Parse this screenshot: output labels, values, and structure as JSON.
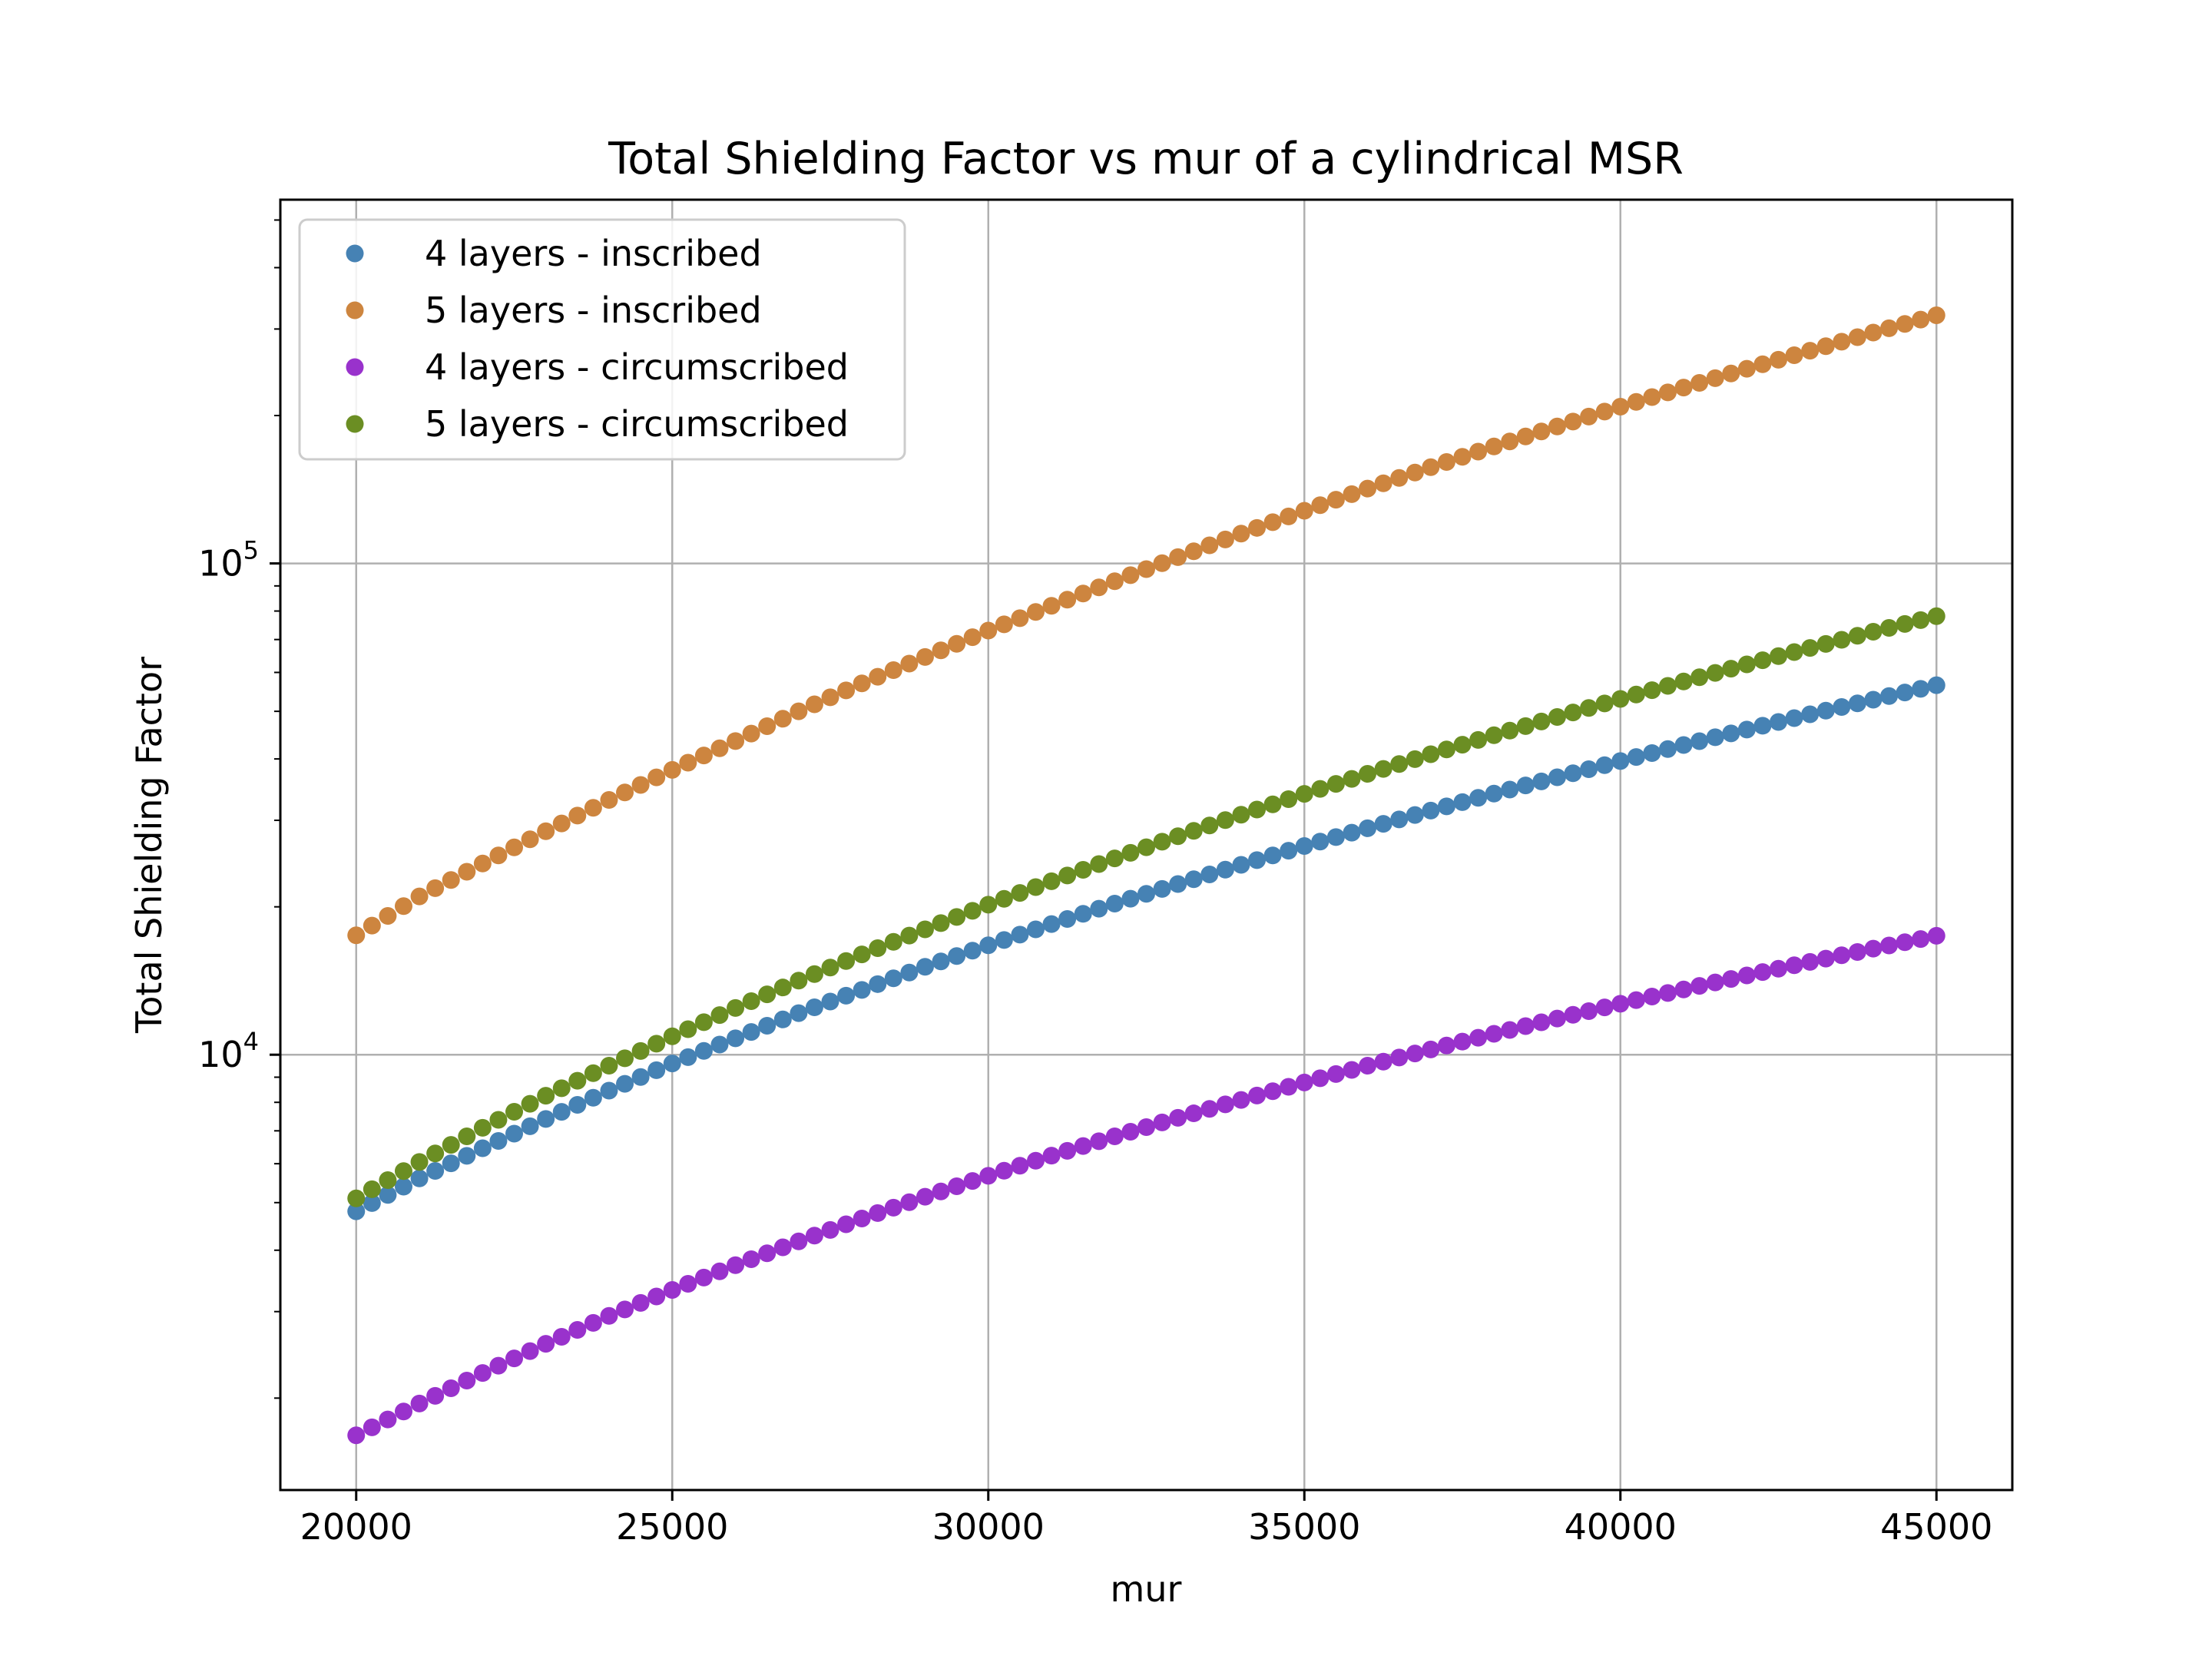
{
  "chart_data": {
    "type": "scatter",
    "title": "Total Shielding Factor vs mur of a cylindrical MSR",
    "xlabel": "mur",
    "ylabel": "Total Shielding Factor",
    "xlim": [
      18800,
      46200
    ],
    "ylim": [
      1300,
      550000
    ],
    "yscale": "log",
    "grid": true,
    "legend_position": "top-left",
    "x_ticks": [
      20000,
      25000,
      30000,
      35000,
      40000,
      45000
    ],
    "x_tick_labels": [
      "20000",
      "25000",
      "30000",
      "35000",
      "40000",
      "45000"
    ],
    "y_ticks": [
      10000,
      100000
    ],
    "y_tick_labels": [
      {
        "base": "10",
        "exp": "4"
      },
      {
        "base": "10",
        "exp": "5"
      }
    ],
    "series": [
      {
        "name": "4 layers - inscribed",
        "color": "#4682b4",
        "x": [
          20000,
          21000,
          22000,
          23000,
          24000,
          25000,
          26000,
          27000,
          28000,
          29000,
          30000,
          31000,
          32000,
          33000,
          34000,
          35000,
          36000,
          37000,
          38000,
          39000,
          40000,
          41000,
          42000,
          43000,
          44000,
          45000
        ],
        "y": [
          4800,
          5600,
          6450,
          7400,
          8450,
          9600,
          10800,
          12150,
          13550,
          15100,
          16700,
          18450,
          20300,
          22250,
          24350,
          26600,
          28900,
          31400,
          34000,
          36700,
          39600,
          42700,
          45900,
          49300,
          52800,
          56500
        ]
      },
      {
        "name": "5 layers - inscribed",
        "color": "#cd853f",
        "x": [
          20000,
          21000,
          22000,
          23000,
          24000,
          25000,
          26000,
          27000,
          28000,
          29000,
          30000,
          31000,
          32000,
          33000,
          34000,
          35000,
          36000,
          37000,
          38000,
          39000,
          40000,
          41000,
          42000,
          43000,
          44000,
          45000
        ],
        "y": [
          17500,
          21000,
          24500,
          28500,
          33000,
          38000,
          43500,
          50000,
          57000,
          64500,
          73000,
          82000,
          92000,
          103000,
          115000,
          128000,
          142000,
          157000,
          173000,
          190000,
          208500,
          228000,
          249000,
          271000,
          295000,
          320000
        ]
      },
      {
        "name": "4 layers - circumscribed",
        "color": "#9932cc",
        "x": [
          20000,
          21000,
          22000,
          23000,
          24000,
          25000,
          26000,
          27000,
          28000,
          29000,
          30000,
          31000,
          32000,
          33000,
          34000,
          35000,
          36000,
          37000,
          38000,
          39000,
          40000,
          41000,
          42000,
          43000,
          44000,
          45000
        ],
        "y": [
          1680,
          1950,
          2250,
          2580,
          2940,
          3320,
          3730,
          4170,
          4640,
          5140,
          5670,
          6230,
          6820,
          7440,
          8090,
          8780,
          9500,
          10250,
          11030,
          11850,
          12700,
          13580,
          14500,
          15450,
          16440,
          17460
        ]
      },
      {
        "name": "5 layers - circumscribed",
        "color": "#6b8e23",
        "x": [
          20000,
          21000,
          22000,
          23000,
          24000,
          25000,
          26000,
          27000,
          28000,
          29000,
          30000,
          31000,
          32000,
          33000,
          34000,
          35000,
          36000,
          37000,
          38000,
          39000,
          40000,
          41000,
          42000,
          43000,
          44000,
          45000
        ],
        "y": [
          5100,
          6050,
          7100,
          8250,
          9500,
          10900,
          12450,
          14150,
          16000,
          18000,
          20200,
          22550,
          25100,
          27850,
          30800,
          33950,
          37300,
          40900,
          44700,
          48700,
          53000,
          57500,
          62300,
          67300,
          72600,
          78100
        ]
      }
    ]
  }
}
